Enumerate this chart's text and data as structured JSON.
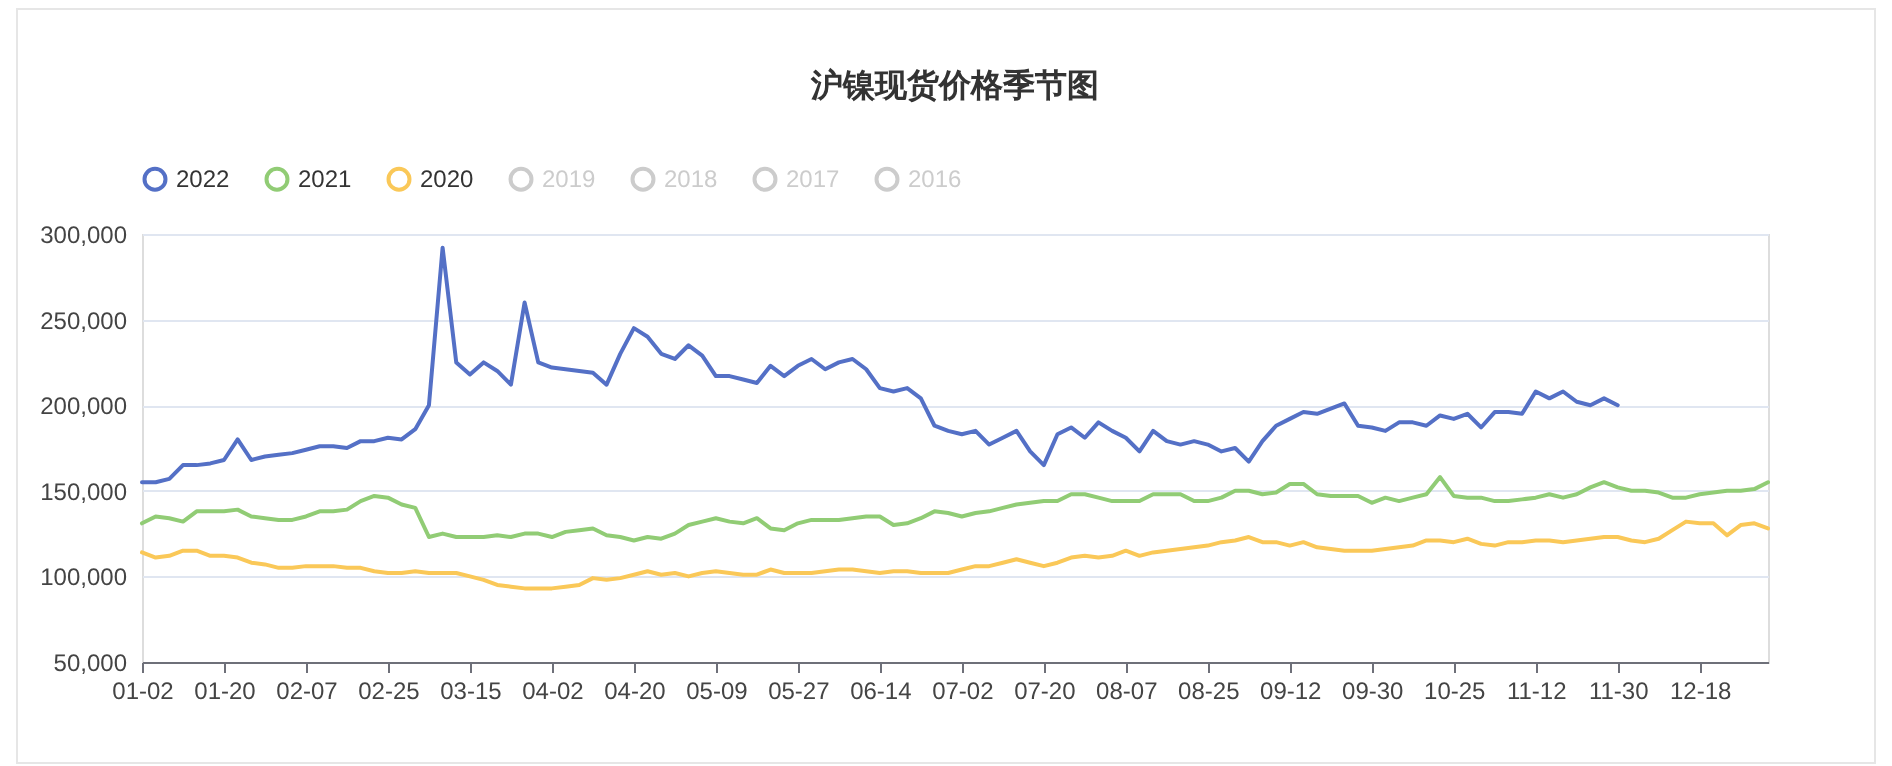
{
  "chart_data": {
    "type": "line",
    "title": "沪镍现货价格季节图",
    "categories": [
      "01-02",
      null,
      null,
      null,
      null,
      null,
      "01-20",
      null,
      null,
      null,
      null,
      null,
      "02-07",
      null,
      null,
      null,
      null,
      null,
      "02-25",
      null,
      null,
      null,
      null,
      null,
      "03-15",
      null,
      null,
      null,
      null,
      null,
      "04-02",
      null,
      null,
      null,
      null,
      null,
      "04-20",
      null,
      null,
      null,
      null,
      null,
      "05-09",
      null,
      null,
      null,
      null,
      null,
      "05-27",
      null,
      null,
      null,
      null,
      null,
      "06-14",
      null,
      null,
      null,
      null,
      null,
      "07-02",
      null,
      null,
      null,
      null,
      null,
      "07-20",
      null,
      null,
      null,
      null,
      null,
      "08-07",
      null,
      null,
      null,
      null,
      null,
      "08-25",
      null,
      null,
      null,
      null,
      null,
      "09-12",
      null,
      null,
      null,
      null,
      null,
      "09-30",
      null,
      null,
      null,
      null,
      null,
      "10-25",
      null,
      null,
      null,
      null,
      null,
      "11-12",
      null,
      null,
      null,
      null,
      null,
      "11-30",
      null,
      null,
      null,
      null,
      null,
      "12-18",
      null,
      null,
      null,
      null,
      null
    ],
    "series": [
      {
        "name": "2022",
        "color": "#5470c6",
        "values": [
          155000,
          155000,
          157000,
          165000,
          165000,
          166000,
          168000,
          180000,
          168000,
          170000,
          171000,
          172000,
          174000,
          176000,
          176000,
          175000,
          179000,
          179000,
          181000,
          180000,
          186000,
          200000,
          292000,
          225000,
          218000,
          225000,
          220000,
          212000,
          260000,
          225000,
          222000,
          221000,
          220000,
          219000,
          212000,
          230000,
          245000,
          240000,
          230000,
          227000,
          235000,
          229000,
          217000,
          217000,
          215000,
          213000,
          223000,
          217000,
          223000,
          227000,
          221000,
          225000,
          227000,
          221000,
          210000,
          208000,
          210000,
          204000,
          188000,
          185000,
          183000,
          185000,
          177000,
          181000,
          185000,
          173000,
          165000,
          183000,
          187000,
          181000,
          190000,
          185000,
          181000,
          173000,
          185000,
          179000,
          177000,
          179000,
          177000,
          173000,
          175000,
          167000,
          179000,
          188000,
          192000,
          196000,
          195000,
          198000,
          201000,
          188000,
          187000,
          185000,
          190000,
          190000,
          188000,
          194000,
          192000,
          195000,
          187000,
          196000,
          196000,
          195000,
          208000,
          204000,
          208000,
          202000,
          200000,
          204000,
          200000,
          null,
          null,
          null,
          null,
          null,
          null,
          null,
          null,
          null,
          null,
          null
        ]
      },
      {
        "name": "2021",
        "color": "#91cc75",
        "values": [
          131000,
          135000,
          134000,
          132000,
          138000,
          138000,
          138000,
          139000,
          135000,
          134000,
          133000,
          133000,
          135000,
          138000,
          138000,
          139000,
          144000,
          147000,
          146000,
          142000,
          140000,
          123000,
          125000,
          123000,
          123000,
          123000,
          124000,
          123000,
          125000,
          125000,
          123000,
          126000,
          127000,
          128000,
          124000,
          123000,
          121000,
          123000,
          122000,
          125000,
          130000,
          132000,
          134000,
          132000,
          131000,
          134000,
          128000,
          127000,
          131000,
          133000,
          133000,
          133000,
          134000,
          135000,
          135000,
          130000,
          131000,
          134000,
          138000,
          137000,
          135000,
          137000,
          138000,
          140000,
          142000,
          143000,
          144000,
          144000,
          148000,
          148000,
          146000,
          144000,
          144000,
          144000,
          148000,
          148000,
          148000,
          144000,
          144000,
          146000,
          150000,
          150000,
          148000,
          149000,
          154000,
          154000,
          148000,
          147000,
          147000,
          147000,
          143000,
          146000,
          144000,
          146000,
          148000,
          158000,
          147000,
          146000,
          146000,
          144000,
          144000,
          145000,
          146000,
          148000,
          146000,
          148000,
          152000,
          155000,
          152000,
          150000,
          150000,
          149000,
          146000,
          146000,
          148000,
          149000,
          150000,
          150000,
          151000,
          155000
        ]
      },
      {
        "name": "2020",
        "color": "#fac858",
        "values": [
          114000,
          111000,
          112000,
          115000,
          115000,
          112000,
          112000,
          111000,
          108000,
          107000,
          105000,
          105000,
          106000,
          106000,
          106000,
          105000,
          105000,
          103000,
          102000,
          102000,
          103000,
          102000,
          102000,
          102000,
          100000,
          98000,
          95000,
          94000,
          93000,
          93000,
          93000,
          94000,
          95000,
          99000,
          98000,
          99000,
          101000,
          103000,
          101000,
          102000,
          100000,
          102000,
          103000,
          102000,
          101000,
          101000,
          104000,
          102000,
          102000,
          102000,
          103000,
          104000,
          104000,
          103000,
          102000,
          103000,
          103000,
          102000,
          102000,
          102000,
          104000,
          106000,
          106000,
          108000,
          110000,
          108000,
          106000,
          108000,
          111000,
          112000,
          111000,
          112000,
          115000,
          112000,
          114000,
          115000,
          116000,
          117000,
          118000,
          120000,
          121000,
          123000,
          120000,
          120000,
          118000,
          120000,
          117000,
          116000,
          115000,
          115000,
          115000,
          116000,
          117000,
          118000,
          121000,
          121000,
          120000,
          122000,
          119000,
          118000,
          120000,
          120000,
          121000,
          121000,
          120000,
          121000,
          122000,
          123000,
          123000,
          121000,
          120000,
          122000,
          127000,
          132000,
          131000,
          131000,
          124000,
          130000,
          131000,
          128000
        ]
      },
      {
        "name": "2019",
        "color": "#cccccc",
        "values": [
          null,
          null,
          null,
          null,
          null,
          null,
          null,
          null,
          null,
          null,
          null,
          null,
          null,
          null,
          null,
          null,
          null,
          null,
          null,
          null,
          null,
          null,
          null,
          null,
          null,
          null,
          null,
          null,
          null,
          null,
          null,
          null,
          null,
          null,
          null,
          null,
          null,
          null,
          null,
          null,
          null,
          null,
          null,
          null,
          null,
          null,
          null,
          null,
          null,
          null,
          null,
          null,
          null,
          null,
          null,
          null,
          null,
          null,
          null,
          null,
          null,
          null,
          null,
          null,
          null,
          null,
          null,
          null,
          null,
          null,
          null,
          null,
          null,
          null,
          null,
          null,
          null,
          null,
          null,
          null,
          null,
          null,
          null,
          null,
          null,
          null,
          null,
          null,
          null,
          null,
          null,
          null,
          null,
          null,
          null,
          null,
          null,
          null,
          null,
          null,
          null,
          null,
          null,
          null,
          null,
          null,
          null,
          null,
          null,
          null,
          null,
          null,
          null,
          null,
          null,
          null,
          null,
          null,
          null,
          null
        ]
      },
      {
        "name": "2018",
        "color": "#cccccc",
        "values": [
          null,
          null,
          null,
          null,
          null,
          null,
          null,
          null,
          null,
          null,
          null,
          null,
          null,
          null,
          null,
          null,
          null,
          null,
          null,
          null,
          null,
          null,
          null,
          null,
          null,
          null,
          null,
          null,
          null,
          null,
          null,
          null,
          null,
          null,
          null,
          null,
          null,
          null,
          null,
          null,
          null,
          null,
          null,
          null,
          null,
          null,
          null,
          null,
          null,
          null,
          null,
          null,
          null,
          null,
          null,
          null,
          null,
          null,
          null,
          null,
          null,
          null,
          null,
          null,
          null,
          null,
          null,
          null,
          null,
          null,
          null,
          null,
          null,
          null,
          null,
          null,
          null,
          null,
          null,
          null,
          null,
          null,
          null,
          null,
          null,
          null,
          null,
          null,
          null,
          null,
          null,
          null,
          null,
          null,
          null,
          null,
          null,
          null,
          null,
          null,
          null,
          null,
          null,
          null,
          null,
          null,
          null,
          null,
          null,
          null,
          null,
          null,
          null,
          null,
          null,
          null,
          null,
          null,
          null,
          null
        ]
      },
      {
        "name": "2017",
        "color": "#cccccc",
        "values": [
          null,
          null,
          null,
          null,
          null,
          null,
          null,
          null,
          null,
          null,
          null,
          null,
          null,
          null,
          null,
          null,
          null,
          null,
          null,
          null,
          null,
          null,
          null,
          null,
          null,
          null,
          null,
          null,
          null,
          null,
          null,
          null,
          null,
          null,
          null,
          null,
          null,
          null,
          null,
          null,
          null,
          null,
          null,
          null,
          null,
          null,
          null,
          null,
          null,
          null,
          null,
          null,
          null,
          null,
          null,
          null,
          null,
          null,
          null,
          null,
          null,
          null,
          null,
          null,
          null,
          null,
          null,
          null,
          null,
          null,
          null,
          null,
          null,
          null,
          null,
          null,
          null,
          null,
          null,
          null,
          null,
          null,
          null,
          null,
          null,
          null,
          null,
          null,
          null,
          null,
          null,
          null,
          null,
          null,
          null,
          null,
          null,
          null,
          null,
          null,
          null,
          null,
          null,
          null,
          null,
          null,
          null,
          null,
          null,
          null,
          null,
          null,
          null,
          null,
          null,
          null,
          null,
          null,
          null,
          null
        ]
      },
      {
        "name": "2016",
        "color": "#cccccc",
        "values": [
          null,
          null,
          null,
          null,
          null,
          null,
          null,
          null,
          null,
          null,
          null,
          null,
          null,
          null,
          null,
          null,
          null,
          null,
          null,
          null,
          null,
          null,
          null,
          null,
          null,
          null,
          null,
          null,
          null,
          null,
          null,
          null,
          null,
          null,
          null,
          null,
          null,
          null,
          null,
          null,
          null,
          null,
          null,
          null,
          null,
          null,
          null,
          null,
          null,
          null,
          null,
          null,
          null,
          null,
          null,
          null,
          null,
          null,
          null,
          null,
          null,
          null,
          null,
          null,
          null,
          null,
          null,
          null,
          null,
          null,
          null,
          null,
          null,
          null,
          null,
          null,
          null,
          null,
          null,
          null,
          null,
          null,
          null,
          null,
          null,
          null,
          null,
          null,
          null,
          null,
          null,
          null,
          null,
          null,
          null,
          null,
          null,
          null,
          null,
          null,
          null,
          null,
          null,
          null,
          null,
          null,
          null,
          null,
          null,
          null,
          null,
          null,
          null,
          null,
          null,
          null,
          null,
          null,
          null,
          null
        ]
      }
    ],
    "ylim": [
      50000,
      300000
    ],
    "yticks": [
      {
        "value": 50000,
        "label": "50,000"
      },
      {
        "value": 100000,
        "label": "100,000"
      },
      {
        "value": 150000,
        "label": "150,000"
      },
      {
        "value": 200000,
        "label": "200,000"
      },
      {
        "value": 250000,
        "label": "250,000"
      },
      {
        "value": 300000,
        "label": "300,000"
      }
    ],
    "grid": "y",
    "legend": "top",
    "marker": "none",
    "line_style": "solid"
  }
}
